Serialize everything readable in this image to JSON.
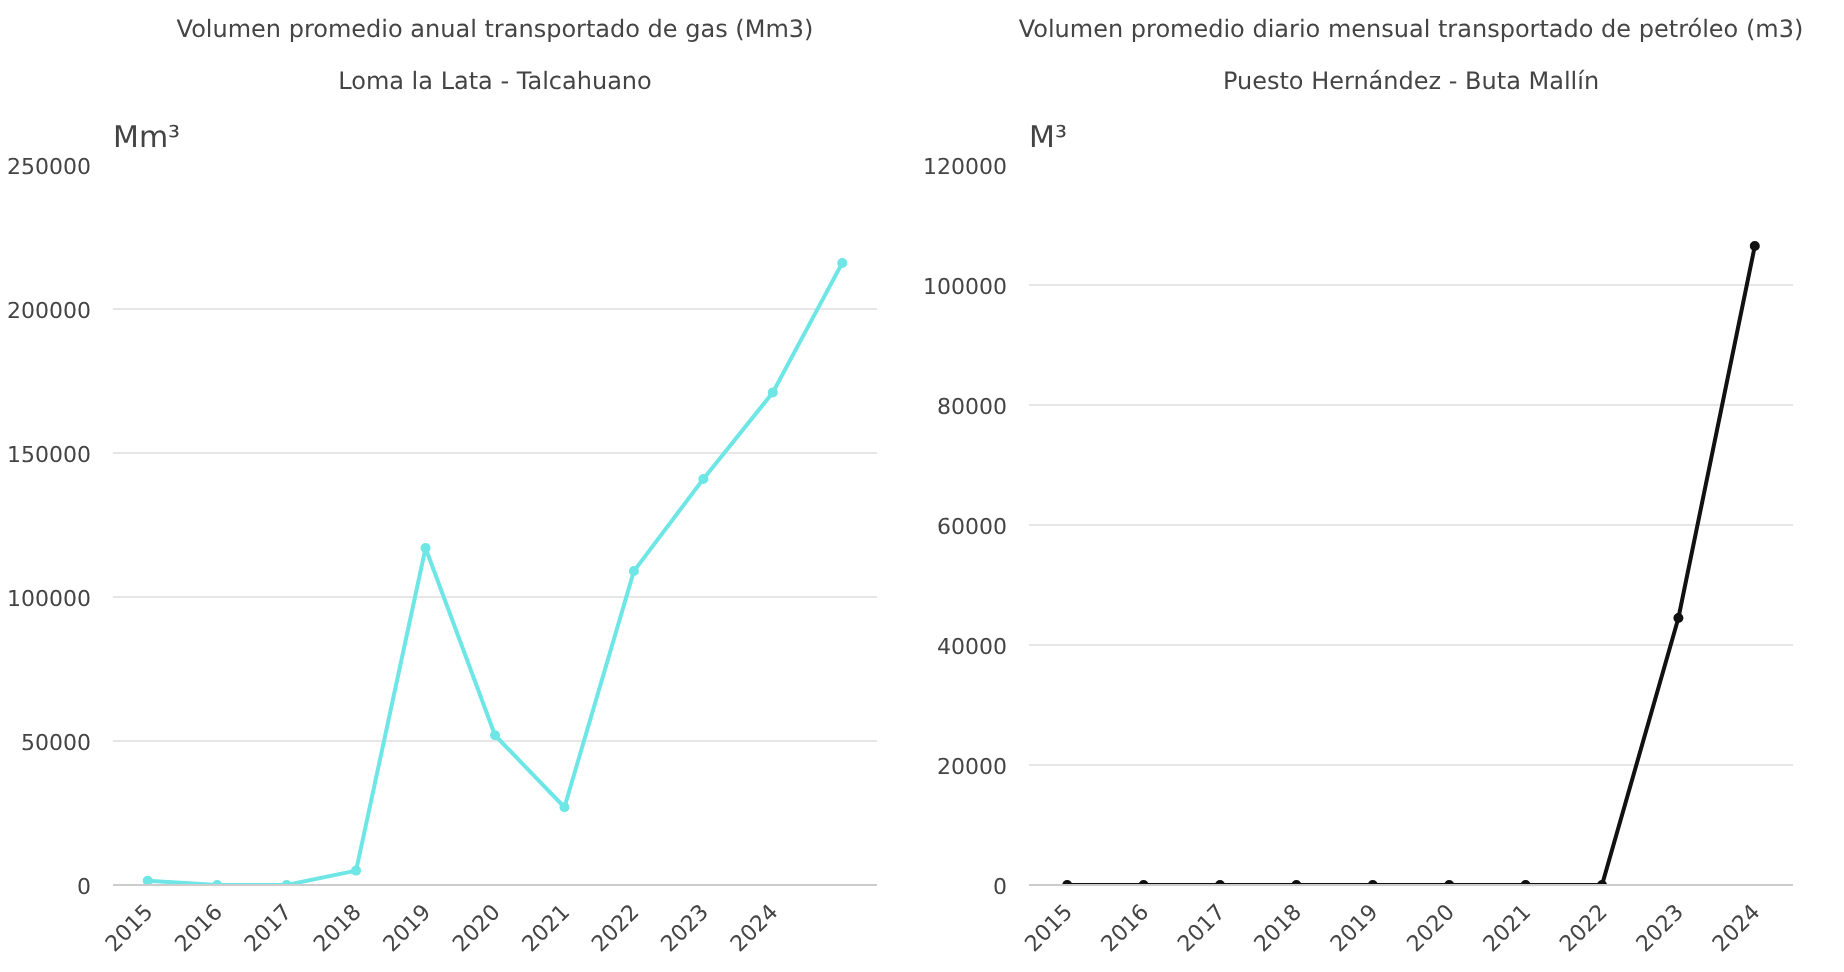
{
  "chart_data": [
    {
      "type": "line",
      "title": "Volumen promedio anual transportado de gas (Mm3)",
      "subtitle": "Loma la Lata - Talcahuano",
      "ylabel": "Mm³",
      "categories": [
        "2015",
        "2016",
        "2017",
        "2018",
        "2019",
        "2020",
        "2021",
        "2022",
        "2023",
        "2024",
        null
      ],
      "series": [
        {
          "color": "#6ee6e6",
          "values": [
            1500,
            0,
            0,
            5000,
            117000,
            52000,
            27000,
            109000,
            141000,
            171000,
            216000
          ]
        }
      ],
      "ylim": [
        0,
        250000
      ],
      "yticks": [
        0,
        50000,
        100000,
        150000,
        200000,
        250000
      ],
      "grid": "y",
      "marker": "circle",
      "line_style": "solid"
    },
    {
      "type": "line",
      "title": "Volumen promedio diario mensual transportado de petróleo (m3)",
      "subtitle": "Puesto Hernández - Buta Mallín",
      "ylabel": "M³",
      "categories": [
        "2015",
        "2016",
        "2017",
        "2018",
        "2019",
        "2020",
        "2021",
        "2022",
        "2023",
        "2024"
      ],
      "series": [
        {
          "color": "#111111",
          "values": [
            0,
            0,
            0,
            0,
            0,
            0,
            0,
            0,
            44500,
            106500
          ]
        }
      ],
      "ylim": [
        0,
        120000
      ],
      "yticks": [
        0,
        20000,
        40000,
        60000,
        80000,
        100000,
        120000
      ],
      "grid": "y",
      "marker": "circle",
      "line_style": "solid"
    }
  ]
}
